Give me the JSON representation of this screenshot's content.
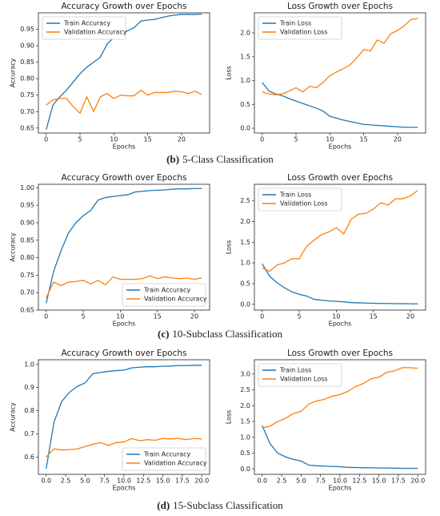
{
  "chart_data": [
    {
      "type": "line",
      "title": "Accuracy Growth over Epochs",
      "xlabel": "Epochs",
      "ylabel": "Accuracy",
      "legend": "upper left",
      "x": [
        0,
        1,
        2,
        3,
        4,
        5,
        6,
        7,
        8,
        9,
        10,
        11,
        12,
        13,
        14,
        15,
        16,
        17,
        18,
        19,
        20,
        21,
        22,
        23
      ],
      "xlim": [
        -1.15,
        24.15
      ],
      "xticks": [
        0,
        5,
        10,
        15,
        20
      ],
      "ylim": [
        0.635,
        1.0
      ],
      "yticks": [
        {
          "value": 0.65,
          "label": "0.65"
        },
        {
          "value": 0.7,
          "label": "0.70"
        },
        {
          "value": 0.75,
          "label": "0.75"
        },
        {
          "value": 0.8,
          "label": "0.80"
        },
        {
          "value": 0.85,
          "label": "0.85"
        },
        {
          "value": 0.9,
          "label": "0.90"
        },
        {
          "value": 0.95,
          "label": "0.95"
        }
      ],
      "series": [
        {
          "name": "Train Accuracy",
          "color": "#1f77b4",
          "values": [
            0.645,
            0.72,
            0.745,
            0.765,
            0.79,
            0.815,
            0.835,
            0.85,
            0.865,
            0.905,
            0.925,
            0.935,
            0.945,
            0.955,
            0.975,
            0.978,
            0.98,
            0.985,
            0.99,
            0.993,
            0.995,
            0.995,
            0.995,
            0.996
          ]
        },
        {
          "name": "Validation Accuracy",
          "color": "#ff7f0e",
          "values": [
            0.72,
            0.735,
            0.74,
            0.74,
            0.715,
            0.695,
            0.745,
            0.7,
            0.745,
            0.755,
            0.74,
            0.75,
            0.748,
            0.748,
            0.765,
            0.75,
            0.758,
            0.758,
            0.758,
            0.762,
            0.76,
            0.755,
            0.762,
            0.752
          ]
        }
      ]
    },
    {
      "type": "line",
      "title": "Loss Growth over Epochs",
      "xlabel": "Epochs",
      "ylabel": "Loss",
      "legend": "upper left",
      "x": [
        0,
        1,
        2,
        3,
        4,
        5,
        6,
        7,
        8,
        9,
        10,
        11,
        12,
        13,
        14,
        15,
        16,
        17,
        18,
        19,
        20,
        21,
        22,
        23
      ],
      "xlim": [
        -1.15,
        24.15
      ],
      "xticks": [
        0,
        5,
        10,
        15,
        20
      ],
      "ylim": [
        -0.1,
        2.42
      ],
      "yticks": [
        {
          "value": 0,
          "label": "0.0"
        },
        0.5,
        {
          "value": 1,
          "label": "1.0"
        },
        1.5,
        {
          "value": 2,
          "label": "2.0"
        }
      ],
      "series": [
        {
          "name": "Train Loss",
          "color": "#1f77b4",
          "values": [
            0.96,
            0.78,
            0.72,
            0.68,
            0.62,
            0.57,
            0.52,
            0.47,
            0.42,
            0.36,
            0.25,
            0.21,
            0.17,
            0.14,
            0.11,
            0.08,
            0.07,
            0.06,
            0.05,
            0.04,
            0.03,
            0.02,
            0.02,
            0.02
          ]
        },
        {
          "name": "Validation Loss",
          "color": "#ff7f0e",
          "values": [
            0.76,
            0.72,
            0.7,
            0.72,
            0.78,
            0.85,
            0.76,
            0.88,
            0.85,
            0.96,
            1.1,
            1.18,
            1.25,
            1.33,
            1.48,
            1.65,
            1.62,
            1.85,
            1.78,
            1.98,
            2.05,
            2.15,
            2.28,
            2.3
          ]
        }
      ]
    },
    {
      "type": "line",
      "title": "Accuracy Growth over Epochs",
      "xlabel": "Epochs",
      "ylabel": "Accuracy",
      "legend": "lower right",
      "x": [
        0,
        1,
        2,
        3,
        4,
        5,
        6,
        7,
        8,
        9,
        10,
        11,
        12,
        13,
        14,
        15,
        16,
        17,
        18,
        19,
        20,
        21
      ],
      "xlim": [
        -1.05,
        22.05
      ],
      "xticks": [
        0,
        5,
        10,
        15,
        20
      ],
      "ylim": [
        0.65,
        1.01
      ],
      "yticks": [
        {
          "value": 0.65,
          "label": "0.65"
        },
        {
          "value": 0.7,
          "label": "0.70"
        },
        {
          "value": 0.75,
          "label": "0.75"
        },
        {
          "value": 0.8,
          "label": "0.80"
        },
        {
          "value": 0.85,
          "label": "0.85"
        },
        {
          "value": 0.9,
          "label": "0.90"
        },
        {
          "value": 0.95,
          "label": "0.95"
        },
        {
          "value": 1,
          "label": "1.00"
        }
      ],
      "series": [
        {
          "name": "Train Accuracy",
          "color": "#1f77b4",
          "values": [
            0.67,
            0.76,
            0.82,
            0.87,
            0.9,
            0.92,
            0.935,
            0.965,
            0.972,
            0.975,
            0.978,
            0.98,
            0.988,
            0.99,
            0.992,
            0.993,
            0.994,
            0.996,
            0.997,
            0.997,
            0.998,
            0.998
          ]
        },
        {
          "name": "Validation Accuracy",
          "color": "#ff7f0e",
          "values": [
            0.685,
            0.73,
            0.72,
            0.73,
            0.732,
            0.735,
            0.725,
            0.735,
            0.722,
            0.745,
            0.738,
            0.738,
            0.738,
            0.74,
            0.748,
            0.74,
            0.745,
            0.742,
            0.74,
            0.742,
            0.738,
            0.742
          ]
        }
      ]
    },
    {
      "type": "line",
      "title": "Loss Growth over Epochs",
      "xlabel": "Epochs",
      "ylabel": "Loss",
      "legend": "upper left",
      "x": [
        0,
        1,
        2,
        3,
        4,
        5,
        6,
        7,
        8,
        9,
        10,
        11,
        12,
        13,
        14,
        15,
        16,
        17,
        18,
        19,
        20,
        21
      ],
      "xlim": [
        -1.05,
        22.05
      ],
      "xticks": [
        0,
        5,
        10,
        15,
        20
      ],
      "ylim": [
        -0.14,
        2.9
      ],
      "yticks": [
        {
          "value": 0,
          "label": "0.0"
        },
        0.5,
        {
          "value": 1,
          "label": "1.0"
        },
        1.5,
        {
          "value": 2,
          "label": "2.0"
        },
        2.5
      ],
      "series": [
        {
          "name": "Train Loss",
          "color": "#1f77b4",
          "values": [
            0.98,
            0.68,
            0.52,
            0.4,
            0.3,
            0.24,
            0.2,
            0.12,
            0.1,
            0.08,
            0.07,
            0.06,
            0.04,
            0.035,
            0.03,
            0.025,
            0.02,
            0.02,
            0.015,
            0.015,
            0.012,
            0.01
          ]
        },
        {
          "name": "Validation Loss",
          "color": "#ff7f0e",
          "values": [
            0.88,
            0.8,
            0.95,
            1.0,
            1.1,
            1.1,
            1.4,
            1.55,
            1.68,
            1.75,
            1.85,
            1.7,
            2.05,
            2.18,
            2.2,
            2.3,
            2.45,
            2.4,
            2.55,
            2.55,
            2.62,
            2.75
          ]
        }
      ]
    },
    {
      "type": "line",
      "title": "Accuracy Growth over Epochs",
      "xlabel": "Epochs",
      "ylabel": "Accuracy",
      "legend": "lower right",
      "x": [
        0,
        1,
        2,
        3,
        4,
        5,
        6,
        7,
        8,
        9,
        10,
        11,
        12,
        13,
        14,
        15,
        16,
        17,
        18,
        19,
        20
      ],
      "xlim": [
        -1,
        21
      ],
      "xticks": [
        {
          "value": 0,
          "label": "0.0"
        },
        2.5,
        {
          "value": 5,
          "label": "5.0"
        },
        7.5,
        {
          "value": 10,
          "label": "10.0"
        },
        12.5,
        {
          "value": 15,
          "label": "15.0"
        },
        17.5,
        {
          "value": 20,
          "label": "20.0"
        }
      ],
      "ylim": [
        0.525,
        1.02
      ],
      "yticks": [
        0.6,
        0.7,
        0.8,
        0.9,
        {
          "value": 1,
          "label": "1.0"
        }
      ],
      "series": [
        {
          "name": "Train Accuracy",
          "color": "#1f77b4",
          "values": [
            0.55,
            0.75,
            0.84,
            0.88,
            0.905,
            0.92,
            0.96,
            0.965,
            0.97,
            0.973,
            0.975,
            0.985,
            0.988,
            0.99,
            0.99,
            0.992,
            0.993,
            0.995,
            0.995,
            0.996,
            0.996
          ]
        },
        {
          "name": "Validation Accuracy",
          "color": "#ff7f0e",
          "values": [
            0.6,
            0.635,
            0.63,
            0.632,
            0.635,
            0.645,
            0.655,
            0.662,
            0.65,
            0.662,
            0.665,
            0.68,
            0.67,
            0.675,
            0.672,
            0.68,
            0.678,
            0.68,
            0.675,
            0.68,
            0.678
          ]
        }
      ]
    },
    {
      "type": "line",
      "title": "Loss Growth over Epochs",
      "xlabel": "Epochs",
      "ylabel": "Loss",
      "legend": "upper left",
      "x": [
        0,
        1,
        2,
        3,
        4,
        5,
        6,
        7,
        8,
        9,
        10,
        11,
        12,
        13,
        14,
        15,
        16,
        17,
        18,
        19,
        20
      ],
      "xlim": [
        -1,
        21
      ],
      "xticks": [
        {
          "value": 0,
          "label": "0.0"
        },
        2.5,
        {
          "value": 5,
          "label": "5.0"
        },
        7.5,
        {
          "value": 10,
          "label": "10.0"
        },
        12.5,
        {
          "value": 15,
          "label": "15.0"
        },
        17.5,
        {
          "value": 20,
          "label": "20.0"
        }
      ],
      "ylim": [
        -0.17,
        3.45
      ],
      "yticks": [
        {
          "value": 0,
          "label": "0.0"
        },
        0.5,
        {
          "value": 1,
          "label": "1.0"
        },
        1.5,
        {
          "value": 2,
          "label": "2.0"
        },
        2.5,
        {
          "value": 3,
          "label": "3.0"
        }
      ],
      "series": [
        {
          "name": "Train Loss",
          "color": "#1f77b4",
          "values": [
            1.37,
            0.8,
            0.5,
            0.38,
            0.3,
            0.25,
            0.12,
            0.1,
            0.09,
            0.08,
            0.07,
            0.05,
            0.045,
            0.04,
            0.035,
            0.03,
            0.03,
            0.025,
            0.02,
            0.02,
            0.02
          ]
        },
        {
          "name": "Validation Loss",
          "color": "#ff7f0e",
          "values": [
            1.3,
            1.35,
            1.5,
            1.6,
            1.75,
            1.82,
            2.05,
            2.15,
            2.2,
            2.3,
            2.35,
            2.45,
            2.6,
            2.7,
            2.85,
            2.9,
            3.05,
            3.1,
            3.2,
            3.2,
            3.18
          ]
        }
      ]
    }
  ],
  "captions": [
    {
      "label": "(b)",
      "text": "5-Class Classification"
    },
    {
      "label": "(c)",
      "text": "10-Subclass Classification"
    },
    {
      "label": "(d)",
      "text": "15-Subclass Classification"
    }
  ]
}
